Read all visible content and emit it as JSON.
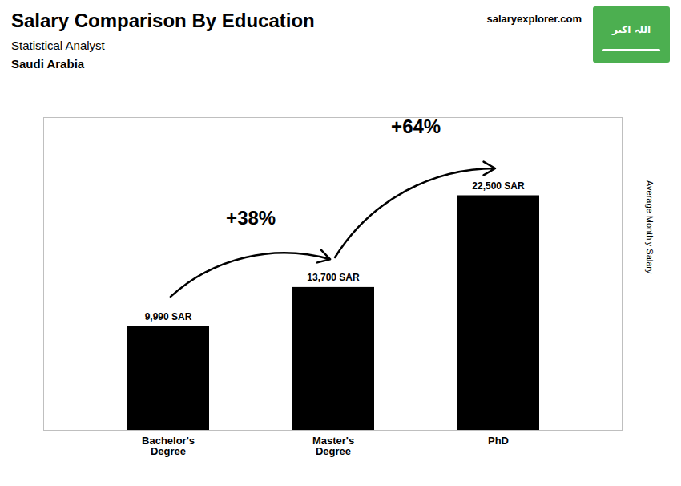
{
  "chart_data": {
    "type": "bar",
    "title": "Salary Comparison By Education",
    "subtitle": "Statistical Analyst",
    "ylabel": "Average Monthly Salary",
    "categories": [
      "Bachelor's\nDegree",
      "Master's\nDegree",
      "PhD"
    ],
    "values": [
      9990,
      13700,
      22500
    ],
    "value_labels": [
      "9,990 SAR",
      "13,700 SAR",
      "22,500 SAR"
    ],
    "data_labels": true,
    "ylim": [
      0,
      30000
    ],
    "tick_labels": "x",
    "grid": false,
    "annotations": [
      {
        "text": "+38%",
        "from": "Bachelor's\nDegree",
        "to": "Master's\nDegree"
      },
      {
        "text": "+64%",
        "from": "Master's\nDegree",
        "to": "PhD"
      },
      "Saudi Arabia",
      "salary",
      "explorer",
      ".com",
      {
        "text": "اللہ اکبر",
        "color": "#4CAF50"
      }
    ]
  }
}
